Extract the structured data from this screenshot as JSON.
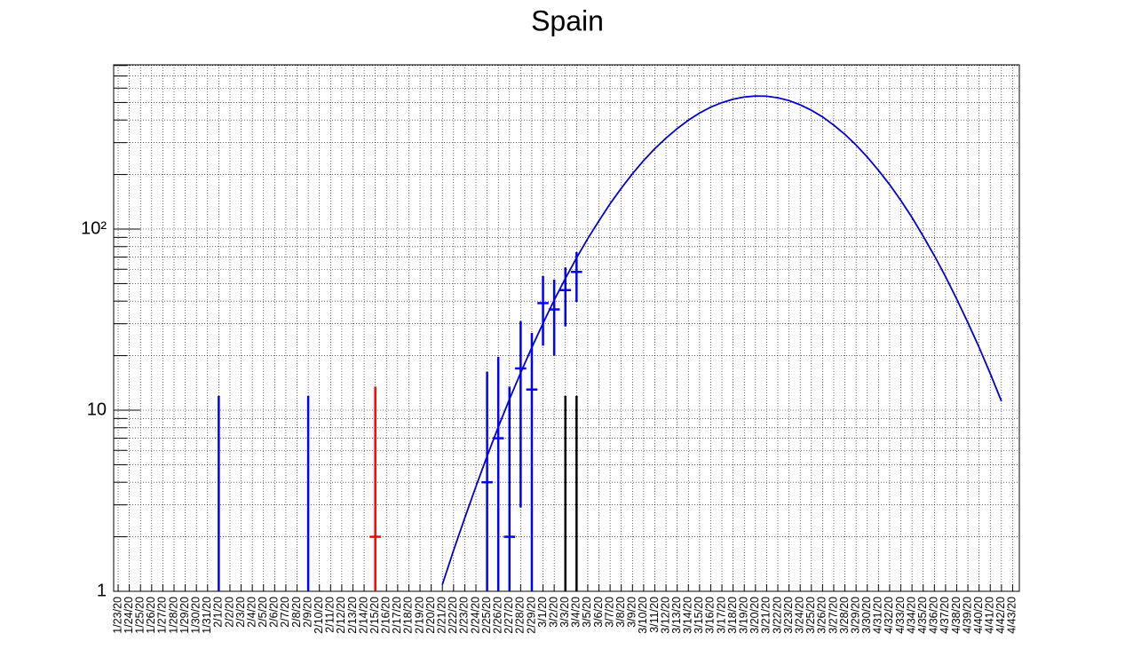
{
  "chart_data": {
    "type": "errorbar",
    "title": "Spain",
    "log_y": true,
    "grid": true,
    "categories": [
      "1/23/20",
      "1/24/20",
      "1/25/20",
      "1/26/20",
      "1/27/20",
      "1/28/20",
      "1/29/20",
      "1/30/20",
      "1/31/20",
      "2/1/20",
      "2/2/20",
      "2/3/20",
      "2/4/20",
      "2/5/20",
      "2/6/20",
      "2/7/20",
      "2/8/20",
      "2/9/20",
      "2/10/20",
      "2/11/20",
      "2/12/20",
      "2/13/20",
      "2/14/20",
      "2/15/20",
      "2/16/20",
      "2/17/20",
      "2/18/20",
      "2/19/20",
      "2/20/20",
      "2/21/20",
      "2/22/20",
      "2/23/20",
      "2/24/20",
      "2/25/20",
      "2/26/20",
      "2/27/20",
      "2/28/20",
      "2/29/20",
      "3/1/20",
      "3/2/20",
      "3/3/20",
      "3/4/20",
      "3/5/20",
      "3/6/20",
      "3/7/20",
      "3/8/20",
      "3/9/20",
      "3/10/20",
      "3/11/20",
      "3/12/20",
      "3/13/20",
      "3/14/20",
      "3/15/20",
      "3/16/20",
      "3/17/20",
      "3/18/20",
      "3/19/20",
      "3/20/20",
      "3/21/20",
      "3/22/20",
      "3/23/20",
      "3/24/20",
      "3/25/20",
      "3/26/20",
      "3/27/20",
      "3/28/20",
      "3/29/20",
      "3/30/20",
      "4/31/20",
      "4/32/20",
      "4/33/20",
      "4/34/20",
      "4/35/20",
      "4/36/20",
      "4/37/20",
      "4/38/20",
      "4/39/20",
      "4/40/20",
      "4/41/20",
      "4/42/20",
      "4/43/20"
    ],
    "ylim": [
      1,
      807
    ],
    "yticks": [
      1,
      10,
      {
        "value": 100,
        "label": "10²"
      }
    ],
    "minor_yticks": [
      2,
      3,
      4,
      5,
      6,
      7,
      8,
      9,
      20,
      30,
      40,
      50,
      60,
      70,
      80,
      90,
      200,
      300,
      400,
      500,
      600,
      700,
      800
    ],
    "series": [
      {
        "color": "#0000ff",
        "x": [
          "2/1/20",
          "2/9/20",
          "2/25/20",
          "2/26/20",
          "2/27/20",
          "2/28/20",
          "2/29/20",
          "3/1/20",
          "3/2/20",
          "3/3/20",
          "3/4/20"
        ],
        "values": [
          null,
          null,
          4,
          7,
          2,
          17,
          13,
          39,
          36,
          46,
          58
        ],
        "lower": [
          1,
          1,
          1,
          1,
          1,
          2.9,
          1,
          22.7,
          20,
          29,
          39.6
        ],
        "upper": [
          12,
          12,
          16.3,
          19.7,
          13.5,
          31,
          26.7,
          55,
          52.6,
          61.5,
          74.6
        ]
      },
      {
        "color": "#ff0000",
        "x": [
          "2/15/20"
        ],
        "values": [
          2
        ],
        "lower": [
          1
        ],
        "upper": [
          13.5
        ]
      },
      {
        "color": "#000000",
        "x": [
          "3/3/20",
          "3/4/20"
        ],
        "values": [
          null,
          null
        ],
        "lower": [
          1,
          1
        ],
        "upper": [
          12,
          12
        ]
      }
    ],
    "fit": {
      "color": "#0000cc",
      "values": [
        null,
        null,
        null,
        null,
        null,
        null,
        null,
        null,
        null,
        null,
        null,
        null,
        null,
        null,
        null,
        null,
        null,
        null,
        null,
        null,
        null,
        null,
        null,
        null,
        null,
        null,
        null,
        null,
        null,
        1.09,
        1.68,
        2.54,
        3.79,
        5.57,
        8.07,
        11.5,
        16.1,
        22.2,
        30.2,
        40.5,
        53.3,
        69.2,
        88.5,
        111,
        138,
        168,
        202,
        239,
        278,
        318,
        359,
        399,
        437,
        471,
        499,
        521,
        536,
        543,
        541,
        531,
        512,
        485,
        453,
        416,
        375,
        333,
        291,
        250,
        211,
        176,
        144,
        116,
        91.4,
        71.3,
        54.6,
        41.0,
        30.4,
        22.2,
        15.9,
        11.2,
        null
      ]
    }
  }
}
